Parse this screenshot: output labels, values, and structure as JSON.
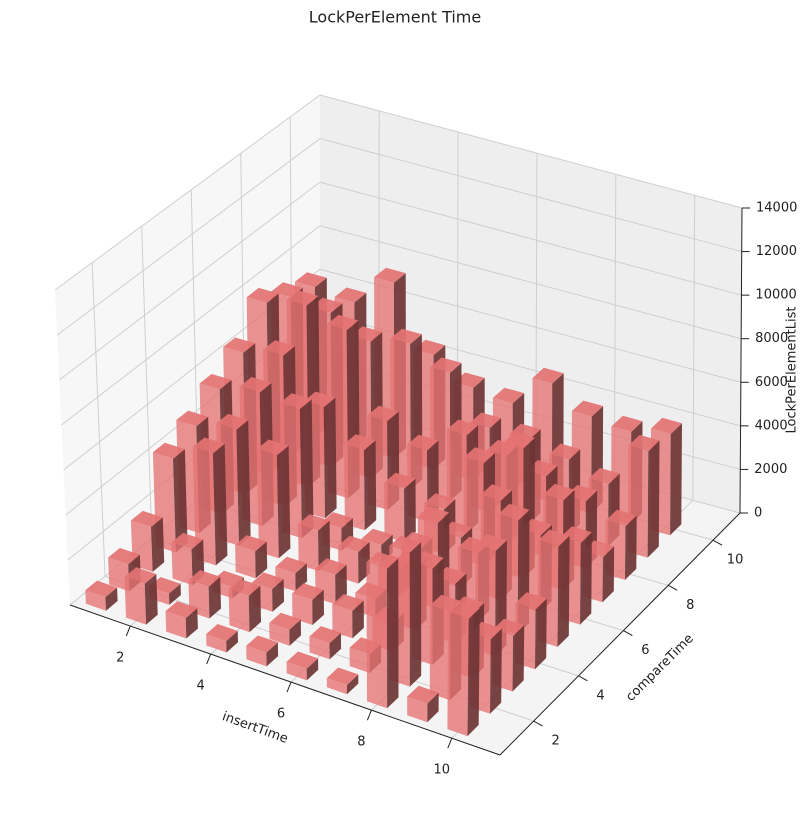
{
  "chart_data": {
    "type": "bar3d",
    "title": "LockPerElement Time",
    "xlabel": "insertTime",
    "ylabel": "compareTime",
    "zlabel": "LockPerElementList",
    "x": [
      1,
      2,
      3,
      4,
      5,
      6,
      7,
      8,
      9,
      10
    ],
    "y": [
      1,
      2,
      3,
      4,
      5,
      6,
      7,
      8,
      9,
      10
    ],
    "values": [
      [
        600,
        1200,
        2000,
        4200,
        4800,
        5600,
        6400,
        7800,
        7200,
        6800
      ],
      [
        1800,
        500,
        1600,
        5000,
        5200,
        6000,
        6800,
        8200,
        7000,
        6600
      ],
      [
        900,
        1400,
        500,
        1200,
        4600,
        5800,
        5000,
        7600,
        6200,
        8000
      ],
      [
        500,
        1600,
        1000,
        800,
        1800,
        1000,
        3600,
        4000,
        6600,
        5200
      ],
      [
        600,
        700,
        1100,
        1300,
        1400,
        800,
        2400,
        3200,
        5800,
        4200
      ],
      [
        500,
        700,
        1200,
        800,
        1100,
        1200,
        2000,
        4400,
        3800,
        4000
      ],
      [
        400,
        800,
        1200,
        2800,
        3800,
        2200,
        4600,
        4000,
        3800,
        5400
      ],
      [
        6000,
        5800,
        4200,
        2600,
        3000,
        4400,
        5800,
        3600,
        3400,
        4400
      ],
      [
        800,
        3800,
        2800,
        4600,
        5000,
        3400,
        4000,
        3000,
        2800,
        4200
      ],
      [
        5000,
        3200,
        2400,
        2600,
        4400,
        3600,
        2000,
        2400,
        4800,
        4600
      ]
    ],
    "color": "#e57373",
    "xlim": [
      0.5,
      11.2
    ],
    "ylim": [
      0.5,
      11.2
    ],
    "zlim": [
      0,
      14000
    ],
    "xticks": [
      2,
      4,
      6,
      8,
      10
    ],
    "yticks": [
      2,
      4,
      6,
      8,
      10
    ],
    "zticks": [
      0,
      2000,
      4000,
      6000,
      8000,
      10000,
      12000,
      14000
    ],
    "grid": true
  }
}
